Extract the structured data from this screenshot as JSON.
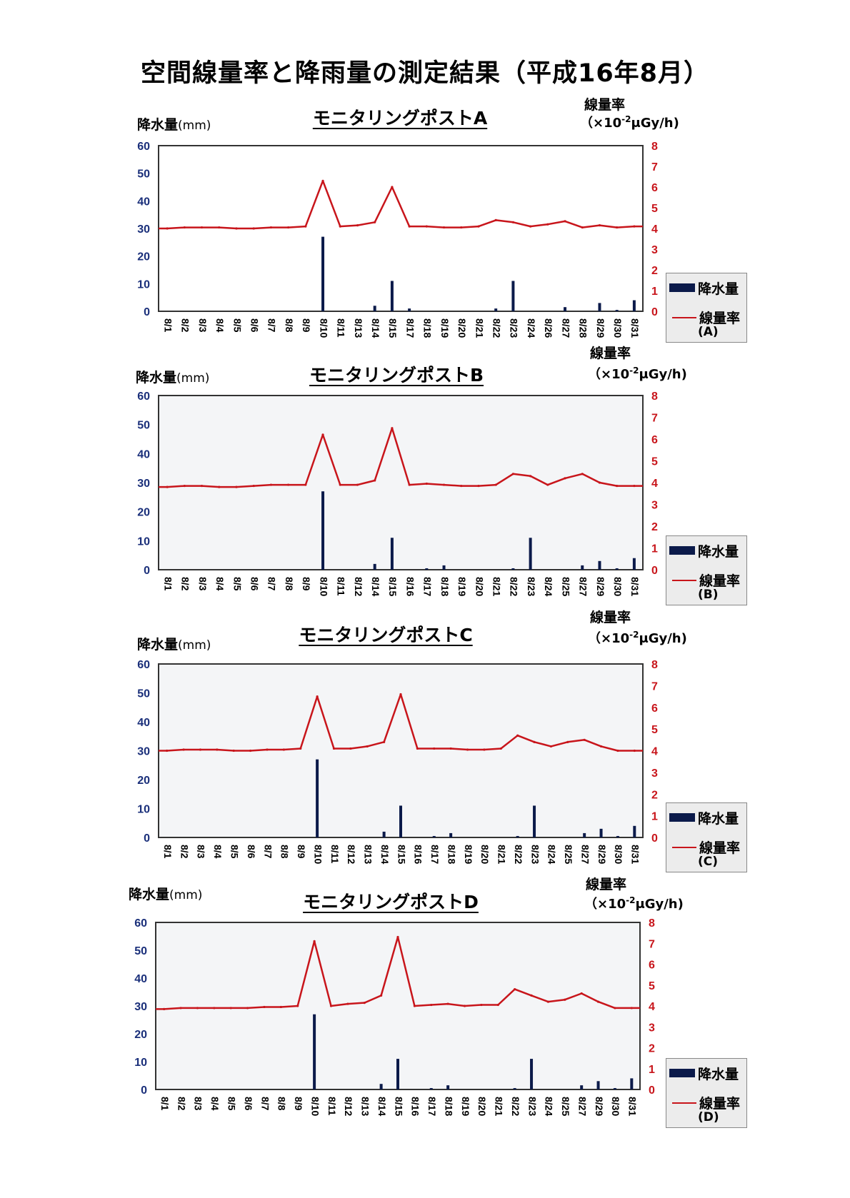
{
  "page_title": "空間線量率と降雨量の測定結果（平成16年8月）",
  "left_axis_label": "降水量",
  "left_axis_unit": "(mm)",
  "right_axis_label": "線量率",
  "right_axis_unit_a": "（×10",
  "right_axis_unit_sup": "-2",
  "right_axis_unit_b": "μGy/h)",
  "legend_rain": "降水量",
  "legend_dose": "線量率",
  "colors": {
    "rain": "#0b1a4a",
    "dose": "#c8151b",
    "left_ticks": "#1a2f7a",
    "right_ticks": "#c8151b"
  },
  "chart_data": [
    {
      "type": "bar+line",
      "title": "モニタリングポストA",
      "legend_id": "(A)",
      "categories": [
        "8/1",
        "8/2",
        "8/3",
        "8/4",
        "8/5",
        "8/6",
        "8/7",
        "8/8",
        "8/9",
        "8/10",
        "8/11",
        "8/13",
        "8/14",
        "8/15",
        "8/17",
        "8/18",
        "8/19",
        "8/20",
        "8/21",
        "8/22",
        "8/23",
        "8/24",
        "8/26",
        "8/27",
        "8/28",
        "8/29",
        "8/30",
        "8/31"
      ],
      "left_ylim": [
        0,
        60
      ],
      "left_ticks": [
        0,
        10,
        20,
        30,
        40,
        50,
        60
      ],
      "right_ylim": [
        0,
        8
      ],
      "right_ticks": [
        0,
        1,
        2,
        3,
        4,
        5,
        6,
        7,
        8
      ],
      "rain_mm": [
        0,
        0,
        0,
        0,
        0,
        0,
        0,
        0,
        0,
        27,
        0,
        0,
        2,
        11,
        1,
        0,
        0,
        0,
        0,
        1,
        11,
        0,
        0,
        1.5,
        0,
        3,
        0.5,
        4
      ],
      "dose_rate": [
        4.0,
        4.05,
        4.05,
        4.05,
        4.0,
        4.0,
        4.05,
        4.05,
        4.1,
        6.3,
        4.1,
        4.15,
        4.3,
        6.0,
        4.1,
        4.1,
        4.05,
        4.05,
        4.1,
        4.4,
        4.3,
        4.1,
        4.2,
        4.35,
        4.05,
        4.15,
        4.05,
        4.1
      ]
    },
    {
      "type": "bar+line",
      "title": "モニタリングポストB",
      "legend_id": "(B)",
      "categories": [
        "8/1",
        "8/2",
        "8/3",
        "8/4",
        "8/5",
        "8/6",
        "8/7",
        "8/8",
        "8/9",
        "8/10",
        "8/11",
        "8/12",
        "8/14",
        "8/15",
        "8/16",
        "8/17",
        "8/18",
        "8/19",
        "8/20",
        "8/21",
        "8/22",
        "8/23",
        "8/24",
        "8/25",
        "8/27",
        "8/29",
        "8/30",
        "8/31"
      ],
      "left_ylim": [
        0,
        60
      ],
      "left_ticks": [
        0,
        10,
        20,
        30,
        40,
        50,
        60
      ],
      "right_ylim": [
        0,
        8
      ],
      "right_ticks": [
        0,
        1,
        2,
        3,
        4,
        5,
        6,
        7,
        8
      ],
      "rain_mm": [
        0,
        0,
        0,
        0,
        0,
        0,
        0,
        0,
        0,
        27,
        0,
        0,
        2,
        11,
        0,
        0.5,
        1.5,
        0,
        0,
        0,
        0.5,
        11,
        0,
        0,
        1.5,
        3,
        0.5,
        4
      ],
      "dose_rate": [
        3.8,
        3.85,
        3.85,
        3.8,
        3.8,
        3.85,
        3.9,
        3.9,
        3.9,
        6.2,
        3.9,
        3.9,
        4.1,
        6.5,
        3.9,
        3.95,
        3.9,
        3.85,
        3.85,
        3.9,
        4.4,
        4.3,
        3.9,
        4.2,
        4.4,
        4.0,
        3.85,
        3.85
      ]
    },
    {
      "type": "bar+line",
      "title": "モニタリングポストC",
      "legend_id": "(C)",
      "categories": [
        "8/1",
        "8/2",
        "8/3",
        "8/4",
        "8/5",
        "8/6",
        "8/7",
        "8/8",
        "8/9",
        "8/10",
        "8/11",
        "8/12",
        "8/13",
        "8/14",
        "8/15",
        "8/16",
        "8/17",
        "8/18",
        "8/19",
        "8/20",
        "8/21",
        "8/22",
        "8/23",
        "8/24",
        "8/25",
        "8/27",
        "8/29",
        "8/30",
        "8/31"
      ],
      "left_ylim": [
        0,
        60
      ],
      "left_ticks": [
        0,
        10,
        20,
        30,
        40,
        50,
        60
      ],
      "right_ylim": [
        0,
        8
      ],
      "right_ticks": [
        0,
        1,
        2,
        3,
        4,
        5,
        6,
        7,
        8
      ],
      "rain_mm": [
        0,
        0,
        0,
        0,
        0,
        0,
        0,
        0,
        0,
        27,
        0,
        0,
        0,
        2,
        11,
        0,
        0.5,
        1.5,
        0,
        0,
        0,
        0.5,
        11,
        0,
        0,
        1.5,
        3,
        0.5,
        4
      ],
      "dose_rate": [
        4.0,
        4.05,
        4.05,
        4.05,
        4.0,
        4.0,
        4.05,
        4.05,
        4.1,
        6.5,
        4.1,
        4.1,
        4.2,
        4.4,
        6.6,
        4.1,
        4.1,
        4.1,
        4.05,
        4.05,
        4.1,
        4.7,
        4.4,
        4.2,
        4.4,
        4.5,
        4.2,
        4.0,
        4.0
      ]
    },
    {
      "type": "bar+line",
      "title": "モニタリングポストD",
      "legend_id": "(D)",
      "categories": [
        "8/1",
        "8/2",
        "8/3",
        "8/4",
        "8/5",
        "8/6",
        "8/7",
        "8/8",
        "8/9",
        "8/10",
        "8/11",
        "8/12",
        "8/13",
        "8/14",
        "8/15",
        "8/16",
        "8/17",
        "8/18",
        "8/19",
        "8/20",
        "8/21",
        "8/22",
        "8/23",
        "8/24",
        "8/25",
        "8/27",
        "8/29",
        "8/30",
        "8/31"
      ],
      "left_ylim": [
        0,
        60
      ],
      "left_ticks": [
        0,
        10,
        20,
        30,
        40,
        50,
        60
      ],
      "right_ylim": [
        0,
        8
      ],
      "right_ticks": [
        0,
        1,
        2,
        3,
        4,
        5,
        6,
        7,
        8
      ],
      "rain_mm": [
        0,
        0,
        0,
        0,
        0,
        0,
        0,
        0,
        0,
        27,
        0,
        0,
        0,
        2,
        11,
        0,
        0.5,
        1.5,
        0,
        0,
        0,
        0.5,
        11,
        0,
        0,
        1.5,
        3,
        0.5,
        4
      ],
      "dose_rate": [
        3.85,
        3.9,
        3.9,
        3.9,
        3.9,
        3.9,
        3.95,
        3.95,
        4.0,
        7.1,
        4.0,
        4.1,
        4.15,
        4.5,
        7.3,
        4.0,
        4.05,
        4.1,
        4.0,
        4.05,
        4.05,
        4.8,
        4.5,
        4.2,
        4.3,
        4.6,
        4.2,
        3.9,
        3.9
      ]
    }
  ]
}
